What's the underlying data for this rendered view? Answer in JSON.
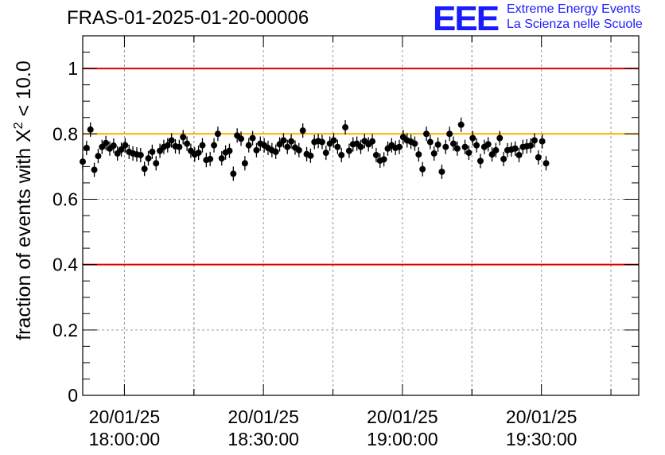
{
  "title": "FRAS-01-2025-01-20-00006",
  "logo": {
    "mark": "EEE",
    "line1": "Extreme Energy Events",
    "line2": "La Scienza nelle Scuole",
    "color": "#1a1aff"
  },
  "chart_data": {
    "type": "scatter",
    "title": "FRAS-01-2025-01-20-00006",
    "ylabel_prefix": "fraction of events with ",
    "ylabel_symbol": "X",
    "ylabel_exp": "2",
    "ylabel_suffix": " < 10.0",
    "xlabel": "",
    "ylim": [
      0,
      1.1
    ],
    "xlim": [
      "17:51:00",
      "19:51:00"
    ],
    "yticks": [
      "0",
      "0.2",
      "0.4",
      "0.6",
      "0.8",
      "1"
    ],
    "ytick_values": [
      0,
      0.2,
      0.4,
      0.6,
      0.8,
      1.0
    ],
    "xticks": [
      {
        "date": "20/01/25",
        "time": "18:00:00"
      },
      {
        "date": "20/01/25",
        "time": "18:30:00"
      },
      {
        "date": "20/01/25",
        "time": "19:00:00"
      },
      {
        "date": "20/01/25",
        "time": "19:30:00"
      }
    ],
    "grid": true,
    "reference_lines": [
      {
        "y": 1.0,
        "color": "#e00000"
      },
      {
        "y": 0.8,
        "color": "#f5b400"
      },
      {
        "y": 0.4,
        "color": "#e00000"
      }
    ],
    "marker_color": "#000000",
    "error": 0.022,
    "x_start": "17:51:00",
    "x_step_seconds": 50,
    "values": [
      0.715,
      0.757,
      0.813,
      0.69,
      0.732,
      0.76,
      0.772,
      0.755,
      0.764,
      0.74,
      0.752,
      0.765,
      0.745,
      0.74,
      0.737,
      0.735,
      0.693,
      0.725,
      0.745,
      0.71,
      0.748,
      0.76,
      0.765,
      0.78,
      0.762,
      0.76,
      0.79,
      0.77,
      0.748,
      0.737,
      0.742,
      0.765,
      0.72,
      0.723,
      0.765,
      0.8,
      0.725,
      0.743,
      0.748,
      0.678,
      0.795,
      0.785,
      0.71,
      0.765,
      0.787,
      0.75,
      0.77,
      0.765,
      0.757,
      0.75,
      0.745,
      0.768,
      0.78,
      0.76,
      0.777,
      0.758,
      0.75,
      0.81,
      0.738,
      0.733,
      0.775,
      0.778,
      0.775,
      0.742,
      0.77,
      0.78,
      0.76,
      0.735,
      0.82,
      0.748,
      0.768,
      0.77,
      0.76,
      0.778,
      0.768,
      0.777,
      0.735,
      0.718,
      0.722,
      0.755,
      0.765,
      0.757,
      0.76,
      0.79,
      0.78,
      0.776,
      0.77,
      0.737,
      0.692,
      0.8,
      0.775,
      0.74,
      0.767,
      0.684,
      0.76,
      0.8,
      0.77,
      0.755,
      0.828,
      0.76,
      0.742,
      0.787,
      0.765,
      0.717,
      0.76,
      0.768,
      0.737,
      0.75,
      0.787,
      0.723,
      0.75,
      0.752,
      0.755,
      0.735,
      0.76,
      0.762,
      0.764,
      0.78,
      0.728,
      0.777,
      0.71
    ]
  }
}
